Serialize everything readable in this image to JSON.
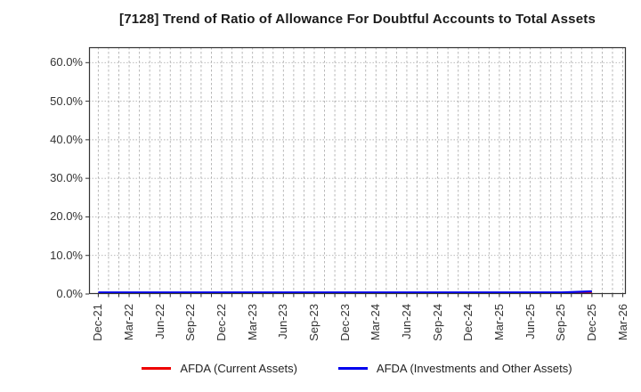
{
  "title": "[7128]  Trend of Ratio of Allowance For Doubtful Accounts to Total Assets",
  "chart_data": {
    "type": "line",
    "title": "[7128]  Trend of Ratio of Allowance For Doubtful Accounts to Total Assets",
    "xlabel": "",
    "ylabel": "",
    "x_tick_labels": [
      "Dec-21",
      "Mar-22",
      "Jun-22",
      "Sep-22",
      "Dec-22",
      "Mar-23",
      "Jun-23",
      "Sep-23",
      "Dec-23",
      "Mar-24",
      "Jun-24",
      "Sep-24",
      "Dec-24",
      "Mar-25",
      "Jun-25",
      "Sep-25",
      "Dec-25",
      "Mar-26"
    ],
    "x_tick_months": [
      0,
      3,
      6,
      9,
      12,
      15,
      18,
      21,
      24,
      27,
      30,
      33,
      36,
      39,
      42,
      45,
      48,
      51
    ],
    "xlim_months": [
      -0.9,
      51.3
    ],
    "y_tick_labels": [
      "0.0%",
      "10.0%",
      "20.0%",
      "30.0%",
      "40.0%",
      "50.0%",
      "60.0%"
    ],
    "y_ticks_pct": [
      0,
      10,
      20,
      30,
      40,
      50,
      60
    ],
    "ylim_pct": [
      0,
      64
    ],
    "grid": {
      "vertical": "monthly dashed",
      "horizontal": "dotted at each 10%",
      "color": "#b0b0b0"
    },
    "axis_color": "#333333",
    "legend_position": "bottom center",
    "series": [
      {
        "name": "AFDA (Current Assets)",
        "color": "#ee0000",
        "x_months": [
          0,
          3,
          6,
          9,
          12,
          15,
          18,
          21,
          24,
          27,
          30,
          33,
          36,
          39,
          42,
          45,
          48
        ],
        "values_pct": [
          0.3,
          0.3,
          0.3,
          0.3,
          0.3,
          0.3,
          0.3,
          0.3,
          0.3,
          0.3,
          0.3,
          0.3,
          0.3,
          0.3,
          0.3,
          0.3,
          0.3
        ],
        "note": "flat near 0%, hidden beneath blue series"
      },
      {
        "name": "AFDA (Investments and Other Assets)",
        "color": "#0000ee",
        "x_months": [
          0,
          3,
          6,
          9,
          12,
          15,
          18,
          21,
          24,
          27,
          30,
          33,
          36,
          39,
          42,
          45,
          48
        ],
        "values_pct": [
          0.4,
          0.4,
          0.4,
          0.4,
          0.4,
          0.4,
          0.4,
          0.4,
          0.4,
          0.4,
          0.4,
          0.4,
          0.4,
          0.4,
          0.4,
          0.4,
          0.7
        ],
        "note": "flat near 0% from Dec-21, tiny uptick at Dec-25, no data after Dec-25"
      }
    ]
  },
  "legend": {
    "items": [
      {
        "label": "AFDA (Current Assets)",
        "color": "#ee0000"
      },
      {
        "label": "AFDA (Investments and Other Assets)",
        "color": "#0000ee"
      }
    ]
  }
}
